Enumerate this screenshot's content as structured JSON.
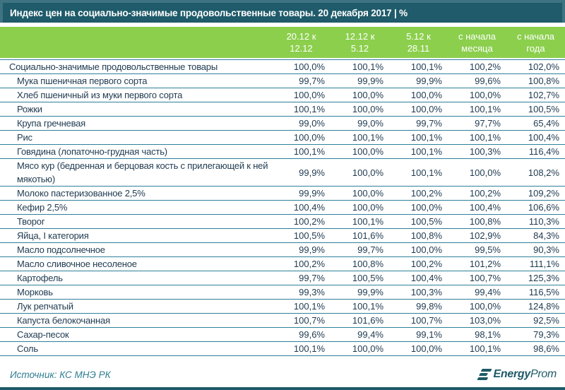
{
  "title": "Индекс цен на социально-значимые продовольственные товары. 20 декабря 2017 | %",
  "chart_data": {
    "type": "table",
    "title": "Индекс цен на социально-значимые продовольственные товары. 20 декабря 2017 | %",
    "columns": [
      "20.12 к 12.12",
      "12.12 к 5.12",
      "5.12 к 28.11",
      "с начала месяца",
      "с начала года"
    ],
    "columns_lines": [
      "20.12 к\n12.12",
      "12.12 к\n5.12",
      "5.12 к\n28.11",
      "с начала\nмесяца",
      "с начала\nгода"
    ],
    "rows": [
      {
        "label": "Социально-значимые продовольственные товары",
        "summary": true,
        "values": [
          "100,0%",
          "100,1%",
          "100,1%",
          "100,2%",
          "102,0%"
        ]
      },
      {
        "label": "Мука пшеничная первого сорта",
        "summary": false,
        "values": [
          "99,7%",
          "99,9%",
          "99,9%",
          "99,6%",
          "100,8%"
        ]
      },
      {
        "label": "Хлеб пшеничный из муки первого сорта",
        "summary": false,
        "values": [
          "100,0%",
          "100,0%",
          "100,0%",
          "100,0%",
          "102,7%"
        ]
      },
      {
        "label": "Рожки",
        "summary": false,
        "values": [
          "100,1%",
          "100,0%",
          "100,0%",
          "100,1%",
          "100,5%"
        ]
      },
      {
        "label": "Крупа гречневая",
        "summary": false,
        "values": [
          "99,0%",
          "99,0%",
          "99,7%",
          "97,7%",
          "65,4%"
        ]
      },
      {
        "label": "Рис",
        "summary": false,
        "values": [
          "100,0%",
          "100,1%",
          "100,1%",
          "100,1%",
          "100,4%"
        ]
      },
      {
        "label": "Говядина (лопаточно-грудная часть)",
        "summary": false,
        "values": [
          "100,1%",
          "100,0%",
          "100,1%",
          "100,3%",
          "116,4%"
        ]
      },
      {
        "label": "Мясо кур (бедренная и берцовая кость с прилегающей к ней мякотью)",
        "summary": false,
        "values": [
          "99,9%",
          "100,0%",
          "100,1%",
          "100,0%",
          "108,2%"
        ]
      },
      {
        "label": "Молоко пастеризованное 2,5%",
        "summary": false,
        "values": [
          "99,9%",
          "100,0%",
          "100,2%",
          "100,2%",
          "109,2%"
        ]
      },
      {
        "label": "Кефир 2,5%",
        "summary": false,
        "values": [
          "100,4%",
          "100,0%",
          "100,0%",
          "100,4%",
          "106,6%"
        ]
      },
      {
        "label": "Творог",
        "summary": false,
        "values": [
          "100,2%",
          "100,1%",
          "100,5%",
          "100,8%",
          "110,3%"
        ]
      },
      {
        "label": "Яйца, I категория",
        "summary": false,
        "values": [
          "100,5%",
          "101,6%",
          "100,8%",
          "102,9%",
          "84,3%"
        ]
      },
      {
        "label": "Масло подсолнечное",
        "summary": false,
        "values": [
          "99,9%",
          "99,7%",
          "100,0%",
          "99,5%",
          "90,3%"
        ]
      },
      {
        "label": "Масло сливочное несоленое",
        "summary": false,
        "values": [
          "100,2%",
          "100,8%",
          "100,2%",
          "101,2%",
          "111,1%"
        ]
      },
      {
        "label": "Картофель",
        "summary": false,
        "values": [
          "99,7%",
          "100,5%",
          "100,4%",
          "100,7%",
          "125,3%"
        ]
      },
      {
        "label": "Морковь",
        "summary": false,
        "values": [
          "99,3%",
          "99,9%",
          "100,3%",
          "99,4%",
          "116,5%"
        ]
      },
      {
        "label": "Лук репчатый",
        "summary": false,
        "values": [
          "100,1%",
          "100,1%",
          "99,8%",
          "100,0%",
          "124,8%"
        ]
      },
      {
        "label": "Капуста белокочанная",
        "summary": false,
        "values": [
          "100,7%",
          "101,6%",
          "100,7%",
          "103,0%",
          "92,5%"
        ]
      },
      {
        "label": "Сахар-песок",
        "summary": false,
        "values": [
          "99,6%",
          "99,4%",
          "99,1%",
          "98,1%",
          "79,3%"
        ]
      },
      {
        "label": "Соль",
        "summary": false,
        "values": [
          "100,1%",
          "100,0%",
          "100,0%",
          "100,1%",
          "98,6%"
        ]
      }
    ],
    "source": "Источник: КС МНЭ РК"
  },
  "footer": {
    "source": "Источник: КС МНЭ РК",
    "logo_bold": "Energy",
    "logo_light": "Prom"
  },
  "colors": {
    "title_teal": "#1F5B6A",
    "title_border": "#3E7482",
    "header_green": "#8CCF4D",
    "row_line": "#2E809B",
    "text": "#1F3A50",
    "source_text": "#2F7D92",
    "logo": "#1E5A68"
  }
}
